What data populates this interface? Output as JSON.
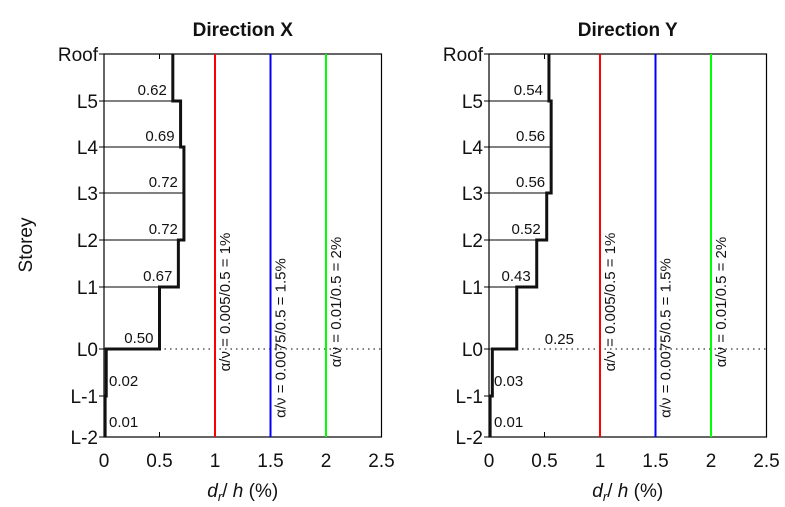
{
  "ylabel": "Storey",
  "chart_data": [
    {
      "type": "line",
      "title": "Direction X",
      "xlabel_var": "d",
      "xlabel_sub": "r",
      "xlabel_rest": "/ h (%)",
      "xlim": [
        0,
        2.5
      ],
      "xticks": [
        "0",
        "0.5",
        "1",
        "1.5",
        "2",
        "2.5"
      ],
      "storeys": [
        "L-2",
        "L-1",
        "L0",
        "L1",
        "L2",
        "L3",
        "L4",
        "L5",
        "Roof"
      ],
      "drifts": [
        0.01,
        0.02,
        0.5,
        0.67,
        0.72,
        0.72,
        0.69,
        0.62
      ],
      "drift_labels": [
        "0.01",
        "0.02",
        "0.50",
        "0.67",
        "0.72",
        "0.72",
        "0.69",
        "0.62"
      ],
      "ground_line_level": "L0",
      "reference_lines": [
        {
          "x": 1.0,
          "label": "α/ν = 0.005/0.5 = 1%",
          "color": "#ff0000"
        },
        {
          "x": 1.5,
          "label": "α/ν = 0.0075/0.5 = 1.5%",
          "color": "#0000ff"
        },
        {
          "x": 2.0,
          "label": "α/ν = 0.01/0.5 = 2%",
          "color": "#00ff00"
        }
      ]
    },
    {
      "type": "line",
      "title": "Direction Y",
      "xlabel_var": "d",
      "xlabel_sub": "r",
      "xlabel_rest": "/ h (%)",
      "xlim": [
        0,
        2.5
      ],
      "xticks": [
        "0",
        "0.5",
        "1",
        "1.5",
        "2",
        "2.5"
      ],
      "storeys": [
        "L-2",
        "L-1",
        "L0",
        "L1",
        "L2",
        "L3",
        "L4",
        "L5",
        "Roof"
      ],
      "drifts": [
        0.01,
        0.03,
        0.25,
        0.43,
        0.52,
        0.56,
        0.56,
        0.54
      ],
      "drift_labels": [
        "0.01",
        "0.03",
        "0.25",
        "0.43",
        "0.52",
        "0.56",
        "0.56",
        "0.54"
      ],
      "ground_line_level": "L0",
      "reference_lines": [
        {
          "x": 1.0,
          "label": "α/ν = 0.005/0.5 = 1%",
          "color": "#ff0000"
        },
        {
          "x": 1.5,
          "label": "α/ν = 0.0075/0.5 = 1.5%",
          "color": "#0000ff"
        },
        {
          "x": 2.0,
          "label": "α/ν = 0.01/0.5 = 2%",
          "color": "#00ff00"
        }
      ]
    }
  ]
}
